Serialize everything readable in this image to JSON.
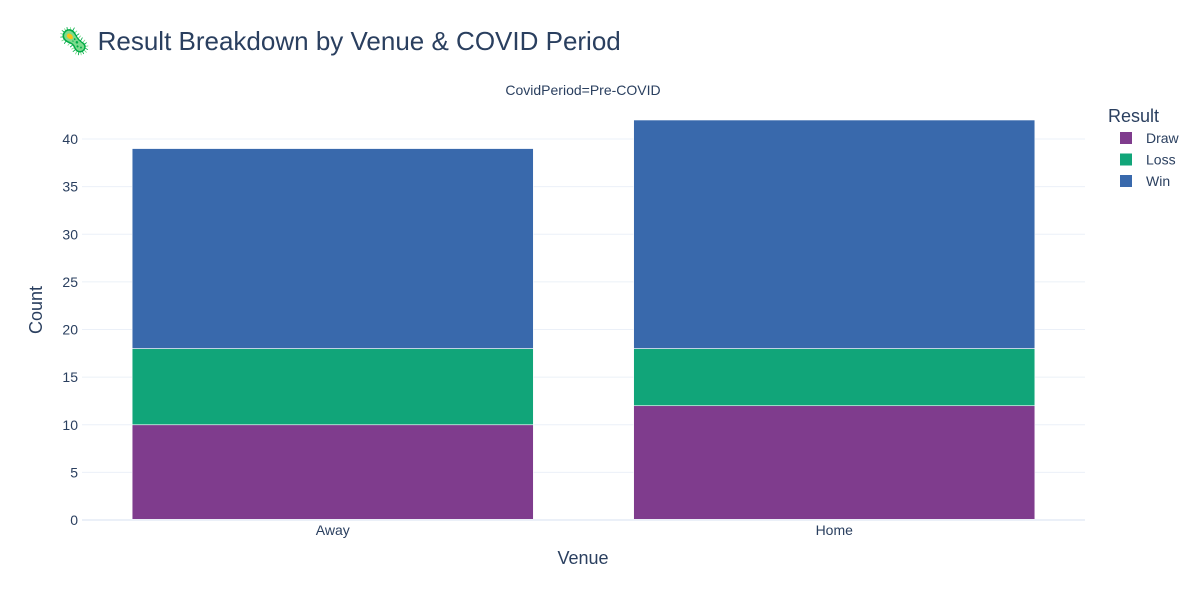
{
  "chart_data": {
    "type": "bar",
    "barmode": "stack",
    "title": "🦠 Result Breakdown by Venue & COVID Period",
    "facet_label": "CovidPeriod=Pre-COVID",
    "xlabel": "Venue",
    "ylabel": "Count",
    "categories": [
      "Away",
      "Home"
    ],
    "ylim": [
      0,
      42
    ],
    "yticks": [
      0,
      5,
      10,
      15,
      20,
      25,
      30,
      35,
      40
    ],
    "grid": true,
    "legend_title": "Result",
    "legend_position": "top-right",
    "series": [
      {
        "name": "Draw",
        "values": [
          10,
          12
        ],
        "color": "#7f3c8d"
      },
      {
        "name": "Loss",
        "values": [
          8,
          6
        ],
        "color": "#11a579"
      },
      {
        "name": "Win",
        "values": [
          21,
          24
        ],
        "color": "#3969ac"
      }
    ]
  }
}
